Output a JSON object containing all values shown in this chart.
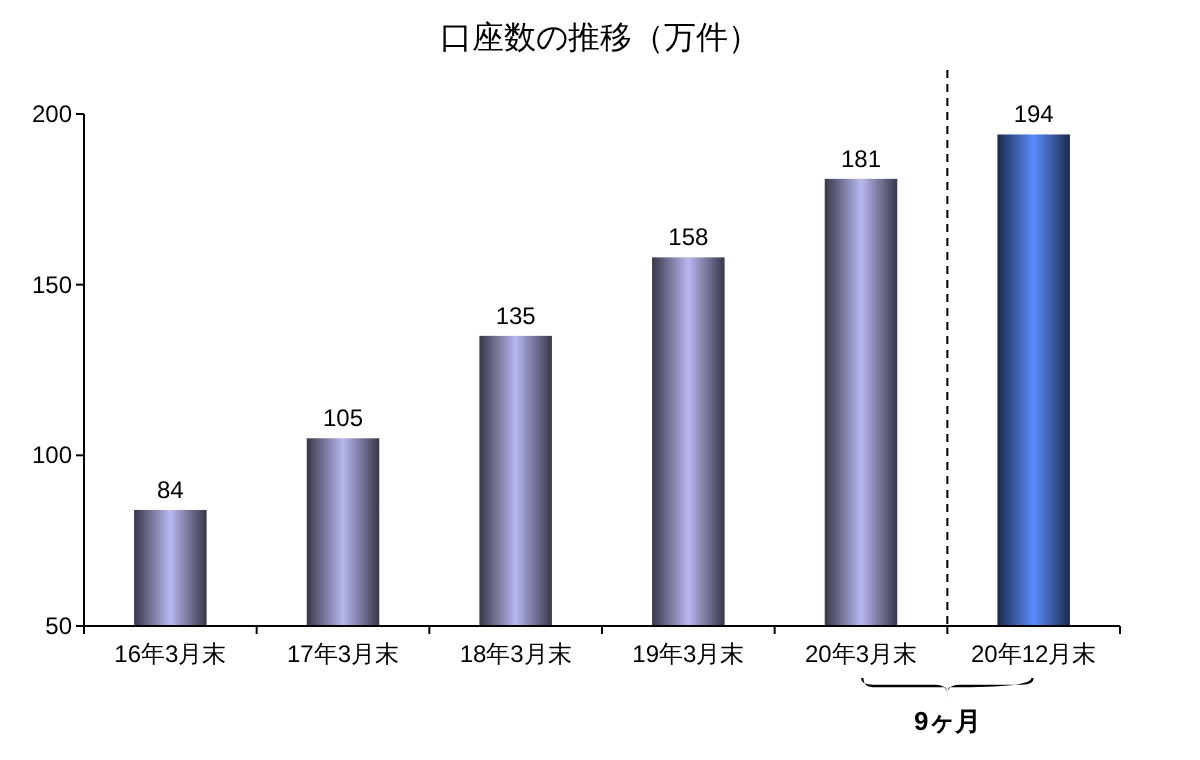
{
  "chart_data": {
    "type": "bar",
    "title": "口座数の推移（万件）",
    "categories": [
      "16年3月末",
      "17年3月末",
      "18年3月末",
      "19年3月末",
      "20年3月末",
      "20年12月末"
    ],
    "values": [
      84,
      105,
      135,
      158,
      181,
      194
    ],
    "colors": [
      "#b8b8f0",
      "#b8b8f0",
      "#b8b8f0",
      "#b8b8f0",
      "#b8b8f0",
      "#5a8cff"
    ],
    "ylim": [
      50,
      200
    ],
    "yticks": [
      50,
      100,
      150,
      200
    ],
    "grid": false,
    "data_labels": true,
    "annotations": [
      "9ヶ月"
    ]
  }
}
